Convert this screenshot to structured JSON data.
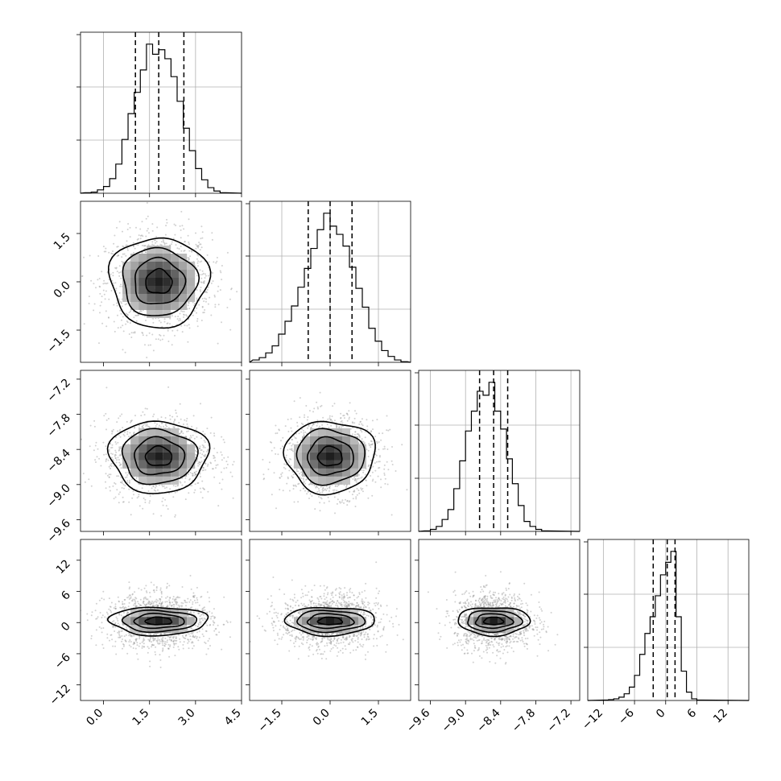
{
  "chart_data": {
    "type": "corner",
    "parameters": [
      {
        "ticks": [
          0.0,
          1.5,
          3.0,
          4.5
        ],
        "tick_labels": [
          "0.0",
          "1.5",
          "3.0",
          "4.5"
        ],
        "range": [
          -0.75,
          4.5
        ],
        "mean": 1.8,
        "sd": 0.78,
        "quantiles": [
          1.04,
          1.8,
          2.62
        ]
      },
      {
        "ticks": [
          -1.5,
          0.0,
          1.5
        ],
        "tick_labels": [
          "−1.5",
          "0.0",
          "1.5"
        ],
        "range": [
          -2.5,
          2.5
        ],
        "mean": 0.0,
        "sd": 0.68,
        "quantiles": [
          -0.68,
          0.0,
          0.68
        ]
      },
      {
        "ticks": [
          -9.6,
          -9.0,
          -8.4,
          -7.8,
          -7.2
        ],
        "tick_labels": [
          "−9.6",
          "−9.0",
          "−8.4",
          "−7.8",
          "−7.2"
        ],
        "range": [
          -9.8,
          -7.05
        ],
        "mean": -8.52,
        "sd": 0.3,
        "quantiles": [
          -8.76,
          -8.52,
          -8.28
        ]
      },
      {
        "ticks": [
          -12,
          -6,
          0,
          6,
          12
        ],
        "tick_labels": [
          "−12",
          "−6",
          "0",
          "6",
          "12"
        ],
        "range": [
          -15,
          16
        ],
        "mean": 0.3,
        "sd": 2.4,
        "quantiles": [
          -2.4,
          0.3,
          1.8
        ]
      }
    ],
    "histograms": [
      {
        "bins": [
          -0.6,
          -0.4,
          -0.2,
          0.0,
          0.2,
          0.4,
          0.6,
          0.8,
          1.0,
          1.2,
          1.4,
          1.6,
          1.8,
          2.0,
          2.2,
          2.4,
          2.6,
          2.8,
          3.0,
          3.2,
          3.4,
          3.6,
          3.8,
          4.0
        ],
        "counts": [
          0.5,
          1,
          3,
          6,
          13,
          26,
          48,
          71,
          90,
          110,
          133,
          124,
          128,
          120,
          104,
          82,
          58,
          38,
          22,
          12,
          5,
          2,
          0.5
        ]
      },
      {
        "bins": [
          -2.4,
          -2.2,
          -2.0,
          -1.8,
          -1.6,
          -1.4,
          -1.2,
          -1.0,
          -0.8,
          -0.6,
          -0.4,
          -0.2,
          0.0,
          0.2,
          0.4,
          0.6,
          0.8,
          1.0,
          1.2,
          1.4,
          1.6,
          1.8,
          2.0,
          2.2,
          2.4
        ],
        "counts": [
          2,
          4,
          8,
          14,
          24,
          35,
          48,
          64,
          80,
          97,
          113,
          127,
          116,
          109,
          99,
          81,
          63,
          47,
          29,
          18,
          10,
          5,
          2,
          0.5
        ]
      },
      {
        "bins": [
          -9.7,
          -9.6,
          -9.5,
          -9.4,
          -9.3,
          -9.2,
          -9.1,
          -9.0,
          -8.9,
          -8.8,
          -8.7,
          -8.6,
          -8.5,
          -8.4,
          -8.3,
          -8.2,
          -8.1,
          -8.0,
          -7.9,
          -7.8,
          -7.7,
          -7.6
        ],
        "counts": [
          0.5,
          2,
          5,
          12,
          22,
          43,
          71,
          101,
          121,
          141,
          137,
          150,
          121,
          103,
          73,
          48,
          26,
          10,
          5,
          2,
          0.5
        ]
      },
      {
        "bins": [
          -12,
          -11,
          -10,
          -9,
          -8,
          -7,
          -6,
          -5,
          -4,
          -3,
          -2,
          -1,
          0,
          1,
          2,
          3,
          4,
          5,
          6,
          7
        ],
        "counts": [
          0.5,
          1,
          2,
          4,
          8,
          16,
          30,
          55,
          80,
          100,
          125,
          150,
          165,
          178,
          100,
          35,
          10,
          2,
          0.5
        ]
      }
    ],
    "grid": true,
    "xlabels_rotated_deg": 45
  }
}
